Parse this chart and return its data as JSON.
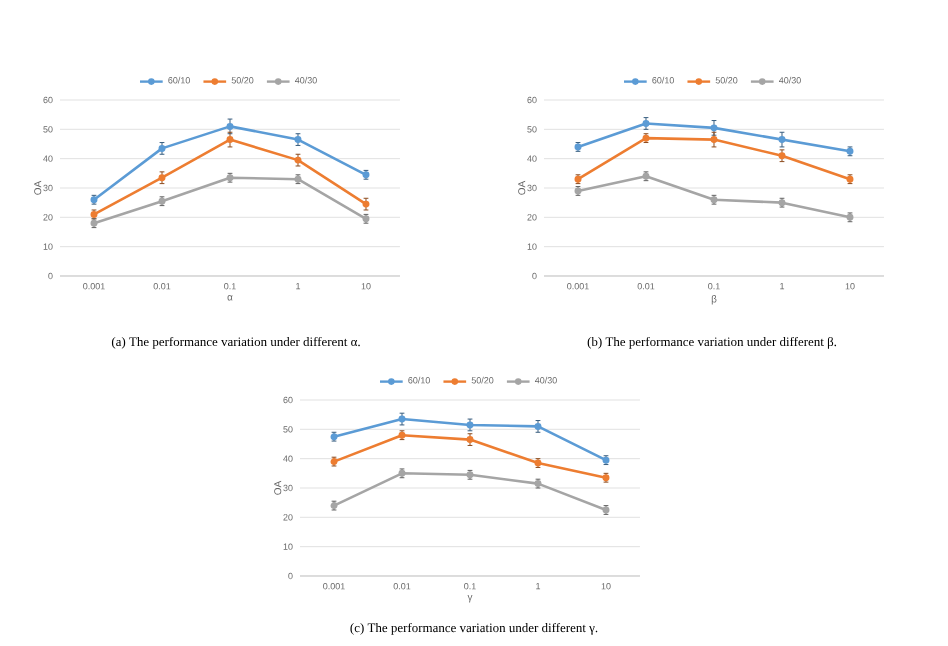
{
  "chart_data": [
    {
      "type": "line",
      "xlabel": "α",
      "ylabel": "OA",
      "categories": [
        "0.001",
        "0.01",
        "0.1",
        "1",
        "10"
      ],
      "ylim": [
        0,
        60
      ],
      "yticks": [
        0,
        10,
        20,
        30,
        40,
        50,
        60
      ],
      "grid": "y",
      "legend": "top",
      "marker": "circle",
      "annotations": [
        "(a) The performance variation under different α."
      ],
      "series": [
        {
          "name": "60/10",
          "color": "#5b9bd5",
          "values": [
            26,
            43.5,
            51,
            46.5,
            34.5
          ],
          "errors": [
            1.5,
            2,
            2.5,
            2,
            1.5
          ]
        },
        {
          "name": "50/20",
          "color": "#ed7d31",
          "values": [
            21,
            33.5,
            46.5,
            39.5,
            24.5
          ],
          "errors": [
            1.5,
            2,
            2.5,
            2,
            2
          ]
        },
        {
          "name": "40/30",
          "color": "#a5a5a5",
          "values": [
            18,
            25.5,
            33.5,
            33,
            19.5
          ],
          "errors": [
            1.5,
            1.5,
            1.5,
            1.5,
            1.5
          ]
        }
      ]
    },
    {
      "type": "line",
      "xlabel": "β",
      "ylabel": "OA",
      "categories": [
        "0.001",
        "0.01",
        "0.1",
        "1",
        "10"
      ],
      "ylim": [
        0,
        60
      ],
      "yticks": [
        0,
        10,
        20,
        30,
        40,
        50,
        60
      ],
      "grid": "y",
      "legend": "top",
      "marker": "circle",
      "annotations": [
        "(b) The performance variation under different β."
      ],
      "series": [
        {
          "name": "60/10",
          "color": "#5b9bd5",
          "values": [
            44,
            52,
            50.5,
            46.5,
            42.5
          ],
          "errors": [
            1.5,
            2,
            2.5,
            2.5,
            1.5
          ]
        },
        {
          "name": "50/20",
          "color": "#ed7d31",
          "values": [
            33,
            47,
            46.5,
            41,
            33
          ],
          "errors": [
            1.5,
            1.5,
            2.5,
            2,
            1.5
          ]
        },
        {
          "name": "40/30",
          "color": "#a5a5a5",
          "values": [
            29,
            34,
            26,
            25,
            20
          ],
          "errors": [
            1.5,
            1.5,
            1.5,
            1.5,
            1.5
          ]
        }
      ]
    },
    {
      "type": "line",
      "xlabel": "γ",
      "ylabel": "OA",
      "categories": [
        "0.001",
        "0.01",
        "0.1",
        "1",
        "10"
      ],
      "ylim": [
        0,
        60
      ],
      "yticks": [
        0,
        10,
        20,
        30,
        40,
        50,
        60
      ],
      "grid": "y",
      "legend": "top",
      "marker": "circle",
      "annotations": [
        "(c) The performance variation under different γ."
      ],
      "series": [
        {
          "name": "60/10",
          "color": "#5b9bd5",
          "values": [
            47.5,
            53.5,
            51.5,
            51,
            39.5
          ],
          "errors": [
            1.5,
            2,
            2,
            2,
            1.5
          ]
        },
        {
          "name": "50/20",
          "color": "#ed7d31",
          "values": [
            39,
            48,
            46.5,
            38.5,
            33.5
          ],
          "errors": [
            1.5,
            1.5,
            2,
            1.5,
            1.5
          ]
        },
        {
          "name": "40/30",
          "color": "#a5a5a5",
          "values": [
            24,
            35,
            34.5,
            31.5,
            22.5
          ],
          "errors": [
            1.5,
            1.5,
            1.5,
            1.5,
            1.5
          ]
        }
      ]
    }
  ]
}
